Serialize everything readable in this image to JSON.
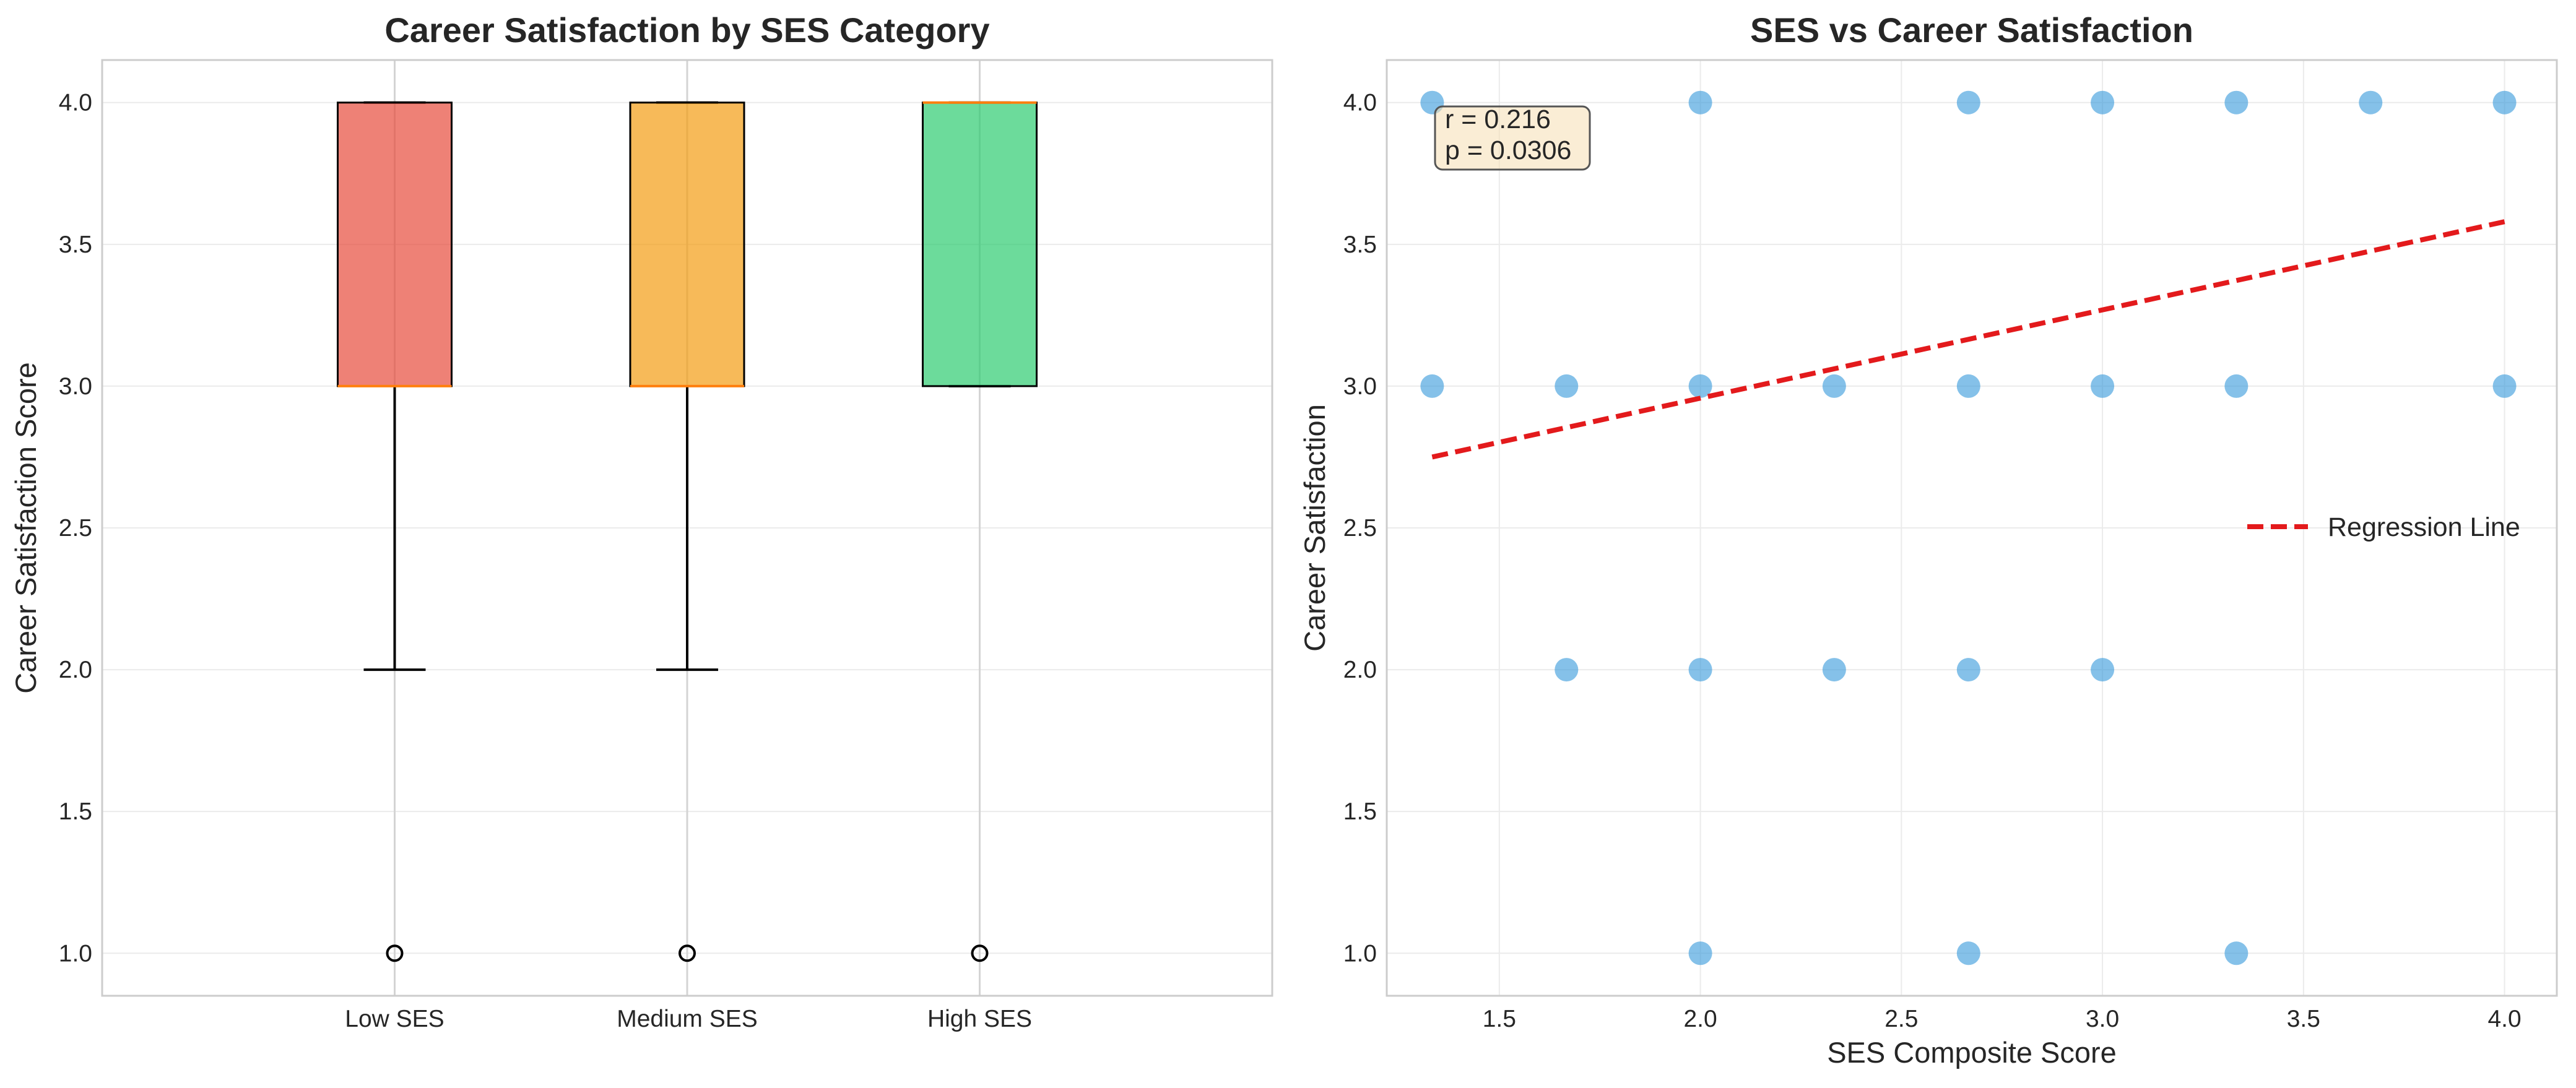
{
  "chart_data": [
    {
      "type": "box",
      "title": "Career Satisfaction by SES Category",
      "xlabel": "",
      "ylabel": "Career Satisfaction Score",
      "ylim": [
        0.85,
        4.15
      ],
      "yticks": [
        1.0,
        1.5,
        2.0,
        2.5,
        3.0,
        3.5,
        4.0
      ],
      "ytick_labels": [
        "1.0",
        "1.5",
        "2.0",
        "2.5",
        "3.0",
        "3.5",
        "4.0"
      ],
      "grid": true,
      "categories": [
        "Low SES",
        "Medium SES",
        "High SES"
      ],
      "boxes": [
        {
          "category": "Low SES",
          "whisker_low": 2.0,
          "q1": 3.0,
          "median": 3.0,
          "q3": 4.0,
          "whisker_high": 4.0,
          "outliers": [
            1.0
          ],
          "color": "#e74c3c"
        },
        {
          "category": "Medium SES",
          "whisker_low": 2.0,
          "q1": 3.0,
          "median": 3.0,
          "q3": 4.0,
          "whisker_high": 4.0,
          "outliers": [
            1.0
          ],
          "color": "#f39c12"
        },
        {
          "category": "High SES",
          "whisker_low": 3.0,
          "q1": 3.0,
          "median": 4.0,
          "q3": 4.0,
          "whisker_high": 4.0,
          "outliers": [
            1.0
          ],
          "color": "#2ecc71"
        }
      ]
    },
    {
      "type": "scatter",
      "title": "SES vs Career Satisfaction",
      "xlabel": "SES Composite Score",
      "ylabel": "Career Satisfaction",
      "xlim": [
        1.22,
        4.13
      ],
      "ylim": [
        0.85,
        4.15
      ],
      "xticks": [
        1.5,
        2.0,
        2.5,
        3.0,
        3.5,
        4.0
      ],
      "xtick_labels": [
        "1.5",
        "2.0",
        "2.5",
        "3.0",
        "3.5",
        "4.0"
      ],
      "yticks": [
        1.0,
        1.5,
        2.0,
        2.5,
        3.0,
        3.5,
        4.0
      ],
      "ytick_labels": [
        "1.0",
        "1.5",
        "2.0",
        "2.5",
        "3.0",
        "3.5",
        "4.0"
      ],
      "grid": true,
      "point_color": "#3498db",
      "points": [
        {
          "x": 1.333,
          "y": 4.0
        },
        {
          "x": 2.0,
          "y": 4.0
        },
        {
          "x": 2.667,
          "y": 4.0
        },
        {
          "x": 3.0,
          "y": 4.0
        },
        {
          "x": 3.333,
          "y": 4.0
        },
        {
          "x": 3.667,
          "y": 4.0
        },
        {
          "x": 4.0,
          "y": 4.0
        },
        {
          "x": 1.333,
          "y": 3.0
        },
        {
          "x": 1.667,
          "y": 3.0
        },
        {
          "x": 2.0,
          "y": 3.0
        },
        {
          "x": 2.333,
          "y": 3.0
        },
        {
          "x": 2.667,
          "y": 3.0
        },
        {
          "x": 3.0,
          "y": 3.0
        },
        {
          "x": 3.333,
          "y": 3.0
        },
        {
          "x": 4.0,
          "y": 3.0
        },
        {
          "x": 1.667,
          "y": 2.0
        },
        {
          "x": 2.0,
          "y": 2.0
        },
        {
          "x": 2.333,
          "y": 2.0
        },
        {
          "x": 2.667,
          "y": 2.0
        },
        {
          "x": 3.0,
          "y": 2.0
        },
        {
          "x": 2.0,
          "y": 1.0
        },
        {
          "x": 2.667,
          "y": 1.0
        },
        {
          "x": 3.333,
          "y": 1.0
        }
      ],
      "regression_line": {
        "name": "Regression Line",
        "color": "#e31a1c",
        "x": [
          1.333,
          4.0
        ],
        "y": [
          2.75,
          3.58
        ]
      },
      "legend": {
        "entries": [
          "Regression Line"
        ],
        "placement": "center-right"
      },
      "annotation": {
        "lines": [
          "r = 0.216",
          "p = 0.0306"
        ],
        "placement": "top-left"
      }
    }
  ]
}
